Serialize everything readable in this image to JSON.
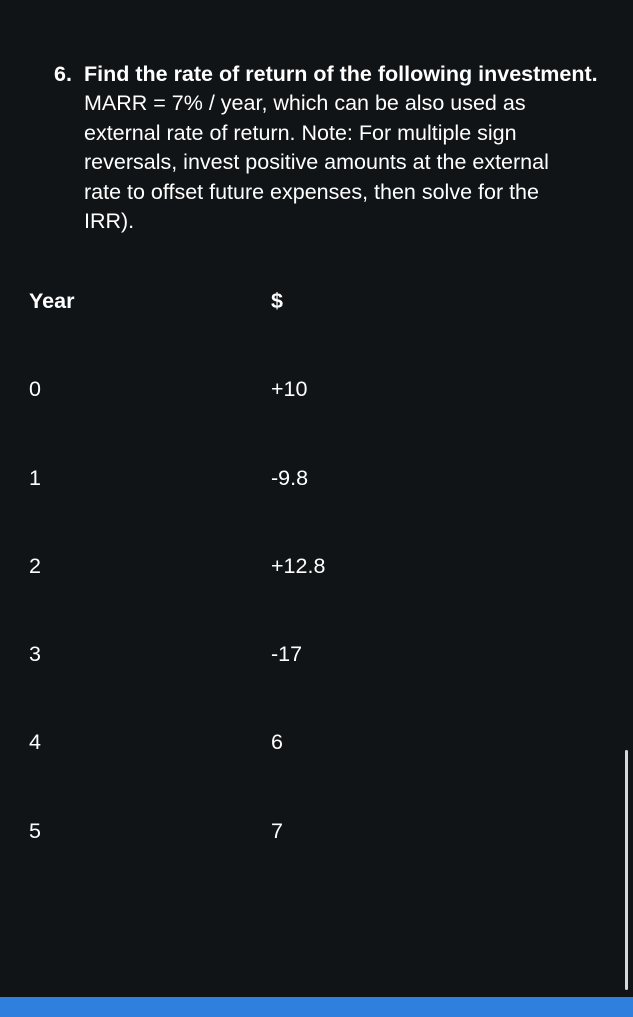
{
  "question": {
    "number": "6.",
    "lines": [
      "Find the rate of return of the following investment.",
      "MARR = 7% / year, which can be also used as",
      "external rate of return.  Note: For multiple sign",
      "reversals, invest positive amounts at the external",
      "rate to offset future expenses, then solve for the",
      "IRR)."
    ]
  },
  "table": {
    "header": {
      "year": "Year",
      "amount": "$"
    },
    "rows": [
      {
        "year": "0",
        "amount": "+10"
      },
      {
        "year": "1",
        "amount": "-9.8"
      },
      {
        "year": "2",
        "amount": "+12.8"
      },
      {
        "year": "3",
        "amount": "-17"
      },
      {
        "year": "4",
        "amount": "6"
      },
      {
        "year": "5",
        "amount": "7"
      }
    ]
  },
  "colors": {
    "background": "#111417",
    "text": "#ffffff",
    "bottom_bar": "#2e7fde"
  }
}
